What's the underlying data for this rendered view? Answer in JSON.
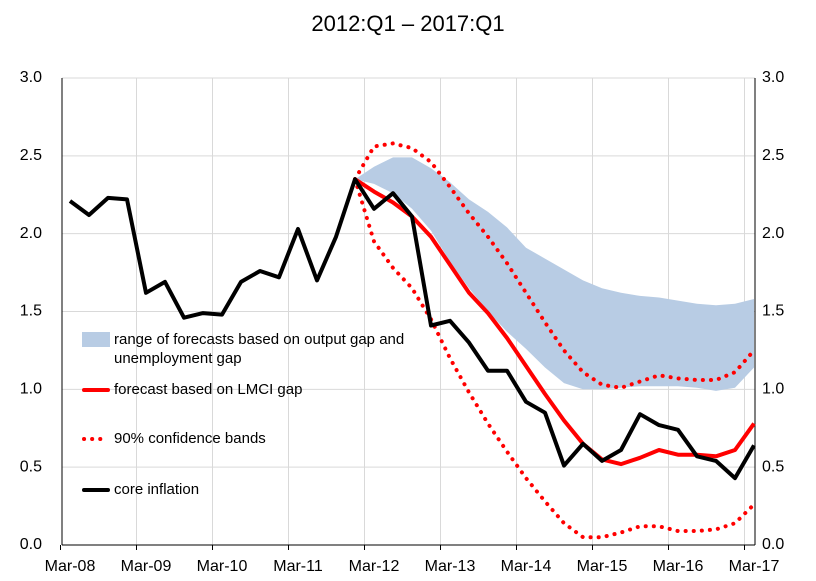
{
  "chart_data": {
    "type": "line",
    "title": "2012:Q1 – 2017:Q1",
    "categories": [
      "Mar-08",
      null,
      null,
      null,
      "Mar-09",
      null,
      null,
      null,
      "Mar-10",
      null,
      null,
      null,
      "Mar-11",
      null,
      null,
      null,
      "Mar-12",
      null,
      null,
      null,
      "Mar-13",
      null,
      null,
      null,
      "Mar-14",
      null,
      null,
      null,
      "Mar-15",
      null,
      null,
      null,
      "Mar-16",
      null,
      null,
      null,
      "Mar-17"
    ],
    "ylim": [
      0,
      3
    ],
    "yticks": [
      {
        "value": 0,
        "label": "0.0"
      },
      {
        "value": 0.5,
        "label": "0.5"
      },
      {
        "value": 1,
        "label": "1.0"
      },
      {
        "value": 1.5,
        "label": "1.5"
      },
      {
        "value": 2,
        "label": "2.0"
      },
      {
        "value": 2.5,
        "label": "2.5"
      },
      {
        "value": 3,
        "label": "3.0"
      }
    ],
    "y2lim": [
      0,
      3
    ],
    "y2ticks": [
      {
        "value": 0,
        "label": "0.0"
      },
      {
        "value": 0.5,
        "label": "0.5"
      },
      {
        "value": 1,
        "label": "1.0"
      },
      {
        "value": 1.5,
        "label": "1.5"
      },
      {
        "value": 2,
        "label": "2.0"
      },
      {
        "value": 2.5,
        "label": "2.5"
      },
      {
        "value": 3,
        "label": "3.0"
      }
    ],
    "grid": true,
    "legend": "upper-left",
    "series": [
      {
        "name": "range of forecasts based on output gap and unemployment gap",
        "color": "#b8cce4",
        "style": "band",
        "high": [
          null,
          null,
          null,
          null,
          null,
          null,
          null,
          null,
          null,
          null,
          null,
          null,
          null,
          null,
          null,
          2.35,
          2.43,
          2.49,
          2.49,
          2.42,
          2.33,
          2.22,
          2.14,
          2.04,
          1.91,
          1.84,
          1.77,
          1.7,
          1.65,
          1.62,
          1.6,
          1.59,
          1.57,
          1.55,
          1.54,
          1.55,
          1.58
        ],
        "low": [
          null,
          null,
          null,
          null,
          null,
          null,
          null,
          null,
          null,
          null,
          null,
          null,
          null,
          null,
          null,
          2.35,
          2.32,
          2.26,
          2.16,
          2.02,
          1.82,
          1.65,
          1.5,
          1.37,
          1.26,
          1.14,
          1.04,
          1.0,
          1.0,
          1.01,
          1.02,
          1.02,
          1.02,
          1.01,
          0.99,
          1.01,
          1.14
        ]
      },
      {
        "name": "forecast based on LMCI gap",
        "color": "#ff0000",
        "style": "solid",
        "values": [
          null,
          null,
          null,
          null,
          null,
          null,
          null,
          null,
          null,
          null,
          null,
          null,
          null,
          null,
          null,
          2.35,
          2.27,
          2.2,
          2.11,
          1.98,
          1.8,
          1.62,
          1.49,
          1.33,
          1.15,
          0.97,
          0.8,
          0.65,
          0.55,
          0.52,
          0.56,
          0.61,
          0.58,
          0.58,
          0.57,
          0.61,
          0.78
        ]
      },
      {
        "name": "90% confidence bands",
        "color": "#ff0000",
        "style": "dotted",
        "high": [
          null,
          null,
          null,
          null,
          null,
          null,
          null,
          null,
          null,
          null,
          null,
          null,
          null,
          null,
          null,
          2.35,
          2.56,
          2.58,
          2.55,
          2.46,
          2.3,
          2.13,
          1.98,
          1.81,
          1.62,
          1.43,
          1.25,
          1.11,
          1.03,
          1.01,
          1.05,
          1.09,
          1.07,
          1.06,
          1.06,
          1.11,
          1.25
        ],
        "low": [
          null,
          null,
          null,
          null,
          null,
          null,
          null,
          null,
          null,
          null,
          null,
          null,
          null,
          null,
          null,
          2.35,
          1.95,
          1.78,
          1.65,
          1.45,
          1.2,
          0.98,
          0.78,
          0.6,
          0.43,
          0.28,
          0.14,
          0.05,
          0.05,
          0.08,
          0.12,
          0.12,
          0.09,
          0.09,
          0.1,
          0.14,
          0.26
        ]
      },
      {
        "name": "core inflation",
        "color": "#000000",
        "style": "solid",
        "values": [
          2.21,
          2.12,
          2.23,
          2.22,
          1.62,
          1.69,
          1.46,
          1.49,
          1.48,
          1.69,
          1.76,
          1.72,
          2.03,
          1.7,
          1.98,
          2.35,
          2.16,
          2.26,
          2.11,
          1.41,
          1.44,
          1.3,
          1.12,
          1.12,
          0.92,
          0.85,
          0.51,
          0.65,
          0.54,
          0.61,
          0.84,
          0.77,
          0.74,
          0.57,
          0.54,
          0.43,
          0.64
        ]
      }
    ]
  }
}
